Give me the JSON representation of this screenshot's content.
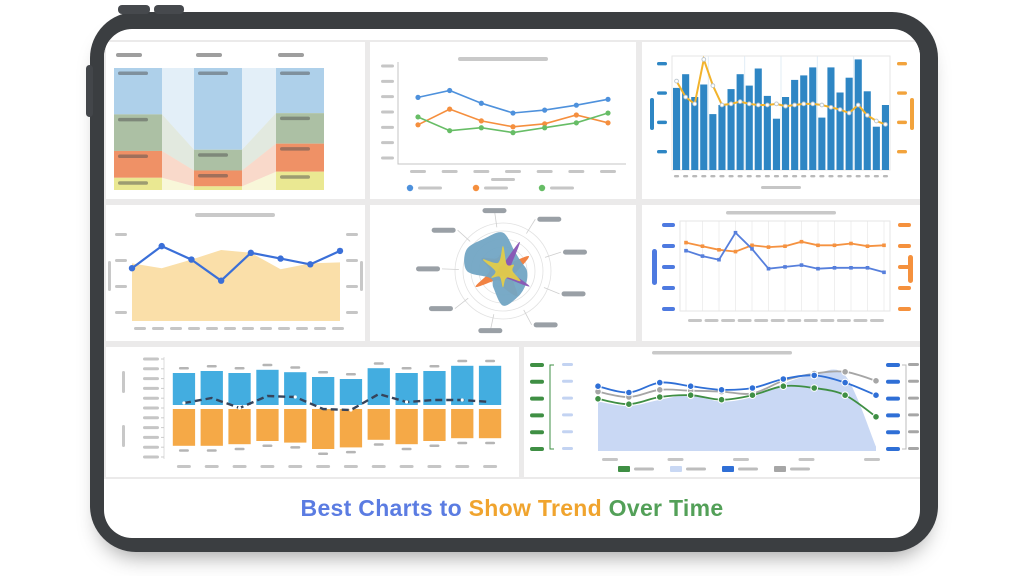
{
  "device": {
    "type": "tablet-mockup",
    "frame_color": "#3b3e41",
    "screen_color": "#ffffff",
    "dashboard_background": "#ebeaea",
    "panel_color": "#ffffff"
  },
  "caption": {
    "text": "Best Charts to Show Trend Over Time",
    "blue": "Best Charts to ",
    "orange": "Show Trend ",
    "green": "Over Time",
    "blue_color": "#5b7ce2",
    "orange_color": "#f0a42e",
    "green_color": "#53a058"
  },
  "chart_data": [
    {
      "id": "stacked-flow",
      "type": "flow-stacked-bar",
      "title_greeked": true,
      "labels_greeked": true,
      "columns": [
        [
          38,
          30,
          22,
          10
        ],
        [
          67,
          17,
          13,
          3
        ],
        [
          37,
          25,
          23,
          15
        ]
      ],
      "segment_colors": [
        "#aed0ea",
        "#acc0a4",
        "#ef9166",
        "#eae892"
      ],
      "flow_opacity": 0.35
    },
    {
      "id": "multi-line",
      "type": "line",
      "title_greeked": true,
      "x_tick_count": 7,
      "y_tick_count": 7,
      "legend": true,
      "series": [
        {
          "name": "series-blue",
          "color": "#4e91dc",
          "values": [
            68,
            75,
            62,
            52,
            55,
            60,
            66
          ]
        },
        {
          "name": "series-orange",
          "color": "#f58f3e",
          "values": [
            40,
            56,
            44,
            38,
            41,
            50,
            42
          ]
        },
        {
          "name": "series-green",
          "color": "#67bd66",
          "values": [
            48,
            34,
            37,
            32,
            37,
            42,
            52
          ]
        }
      ]
    },
    {
      "id": "bar-line",
      "type": "bar-line-combo",
      "bar_color": "#2e86c4",
      "line_color": "#f2b32c",
      "left_axis_color": "#2e86c4",
      "right_axis_color": "#f2a33c",
      "x_axis_title_greeked": true,
      "bars": [
        72,
        84,
        64,
        75,
        49,
        57,
        71,
        84,
        74,
        89,
        65,
        45,
        64,
        79,
        83,
        90,
        46,
        90,
        68,
        81,
        97,
        69,
        38,
        57
      ],
      "line": [
        78,
        64,
        58,
        97,
        74,
        57,
        58,
        60,
        58,
        57,
        57,
        58,
        56,
        57,
        58,
        58,
        57,
        55,
        53,
        50,
        57,
        48,
        43,
        40
      ]
    },
    {
      "id": "area-line",
      "type": "area-line-combo",
      "title_greeked": true,
      "area_color": "#fadfa9",
      "line_color": "#3a6fd8",
      "x_tick_count": 12,
      "y_tick_count": 4,
      "area": [
        60,
        55,
        64,
        74,
        71,
        54,
        60,
        61
      ],
      "line": [
        55,
        78,
        64,
        42,
        71,
        65,
        59,
        73
      ]
    },
    {
      "id": "radar",
      "type": "radar",
      "label_count": 9,
      "ring_count": 6,
      "labels_greeked": true,
      "series": [
        {
          "name": "orange",
          "color": "#f07c3a",
          "values": [
            38,
            20,
            62,
            30,
            22,
            60,
            34,
            22,
            66,
            28,
            52,
            30
          ]
        },
        {
          "name": "steel-blue",
          "color": "#72a5c4",
          "values": [
            80,
            48,
            42,
            50,
            55,
            62,
            72,
            40,
            30,
            75,
            88,
            78
          ]
        },
        {
          "name": "purple",
          "color": "#8a55b5",
          "values": [
            14,
            70,
            18,
            14,
            64,
            18,
            10,
            14,
            16,
            12,
            10,
            12
          ]
        },
        {
          "name": "yellow",
          "color": "#e3cd49",
          "values": [
            52,
            16,
            26,
            20,
            42,
            16,
            34,
            14,
            28,
            16,
            48,
            20
          ]
        }
      ]
    },
    {
      "id": "dual-line",
      "type": "dual-axis-line",
      "title_greeked": true,
      "x_tick_count": 12,
      "left_axis_color": "#4e7ae0",
      "right_axis_color": "#f5913d",
      "series": [
        {
          "name": "orange",
          "color": "#f59240",
          "values": [
            76,
            72,
            68,
            66,
            73,
            71,
            72,
            77,
            73,
            73,
            75,
            72,
            73
          ]
        },
        {
          "name": "blue",
          "color": "#567fdc",
          "values": [
            67,
            61,
            57,
            87,
            69,
            47,
            49,
            51,
            47,
            48,
            48,
            48,
            43
          ]
        }
      ]
    },
    {
      "id": "diverging-bar",
      "type": "diverging-bar-line",
      "up_color": "#43ade0",
      "down_color": "#f5a947",
      "line_color": "#36435a",
      "y_tick_count": 11,
      "value_labels_greeked": true,
      "up": [
        80,
        85,
        80,
        88,
        82,
        70,
        65,
        92,
        80,
        85,
        98,
        98
      ],
      "down": [
        92,
        92,
        88,
        80,
        84,
        100,
        96,
        77,
        88,
        80,
        73,
        73
      ],
      "line_offsets": [
        -4,
        -9,
        1,
        -11,
        -10,
        2,
        3,
        -13,
        -5,
        -7,
        -7,
        -5
      ]
    },
    {
      "id": "smooth-multi",
      "type": "multi-axis-smooth-area",
      "title_greeked": true,
      "x_tick_count": 5,
      "area": {
        "color": "#c9d8f4",
        "values": [
          55,
          50,
          57,
          62,
          55,
          60,
          75,
          85,
          84,
          5
        ]
      },
      "series": [
        {
          "name": "gray",
          "color": "#a6a6a6",
          "values": [
            66,
            60,
            68,
            67,
            66,
            64,
            78,
            86,
            88,
            78
          ]
        },
        {
          "name": "blue",
          "color": "#2f6fd6",
          "values": [
            72,
            65,
            76,
            72,
            68,
            70,
            80,
            84,
            76,
            62
          ]
        },
        {
          "name": "green",
          "color": "#3f8f44",
          "values": [
            58,
            52,
            60,
            62,
            57,
            62,
            72,
            70,
            62,
            38
          ]
        }
      ],
      "axis_colors": [
        "#3f8f44",
        "#c3d3f2",
        "#2f6fd6",
        "#a6a6a6"
      ],
      "legend_colors": [
        "#3f8f44",
        "#c9d8f4",
        "#2f6fd6",
        "#a6a6a6"
      ]
    }
  ]
}
